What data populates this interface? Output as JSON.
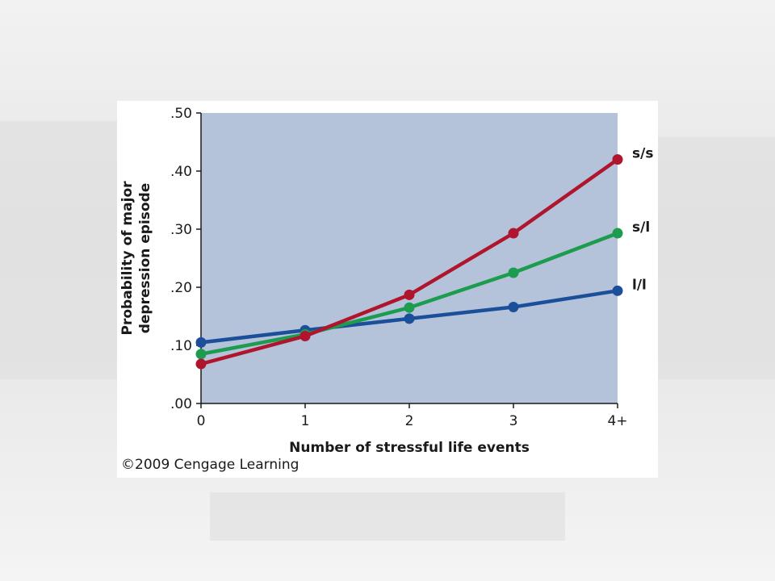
{
  "credit": "©2009 Cengage Learning",
  "chart_data": {
    "type": "line",
    "title": "",
    "xlabel": "Number of stressful life events",
    "ylabel_lines": [
      "Probability of major",
      "depression episode"
    ],
    "categories": [
      "0",
      "1",
      "2",
      "3",
      "4+"
    ],
    "y_ticks": [
      ".00",
      ".10",
      ".20",
      ".30",
      ".40",
      ".50"
    ],
    "ylim": [
      0,
      0.5
    ],
    "grid": false,
    "plot_background": "#b4c3da",
    "legend": "direct labels at right end of lines",
    "series": [
      {
        "name": "s/s",
        "color": "#b0152e",
        "values": [
          0.068,
          0.116,
          0.187,
          0.293,
          0.42
        ]
      },
      {
        "name": "s/l",
        "color": "#1d9b4f",
        "values": [
          0.085,
          0.119,
          0.165,
          0.225,
          0.293
        ]
      },
      {
        "name": "l/l",
        "color": "#1b4f9a",
        "values": [
          0.105,
          0.126,
          0.146,
          0.166,
          0.194
        ]
      }
    ]
  }
}
